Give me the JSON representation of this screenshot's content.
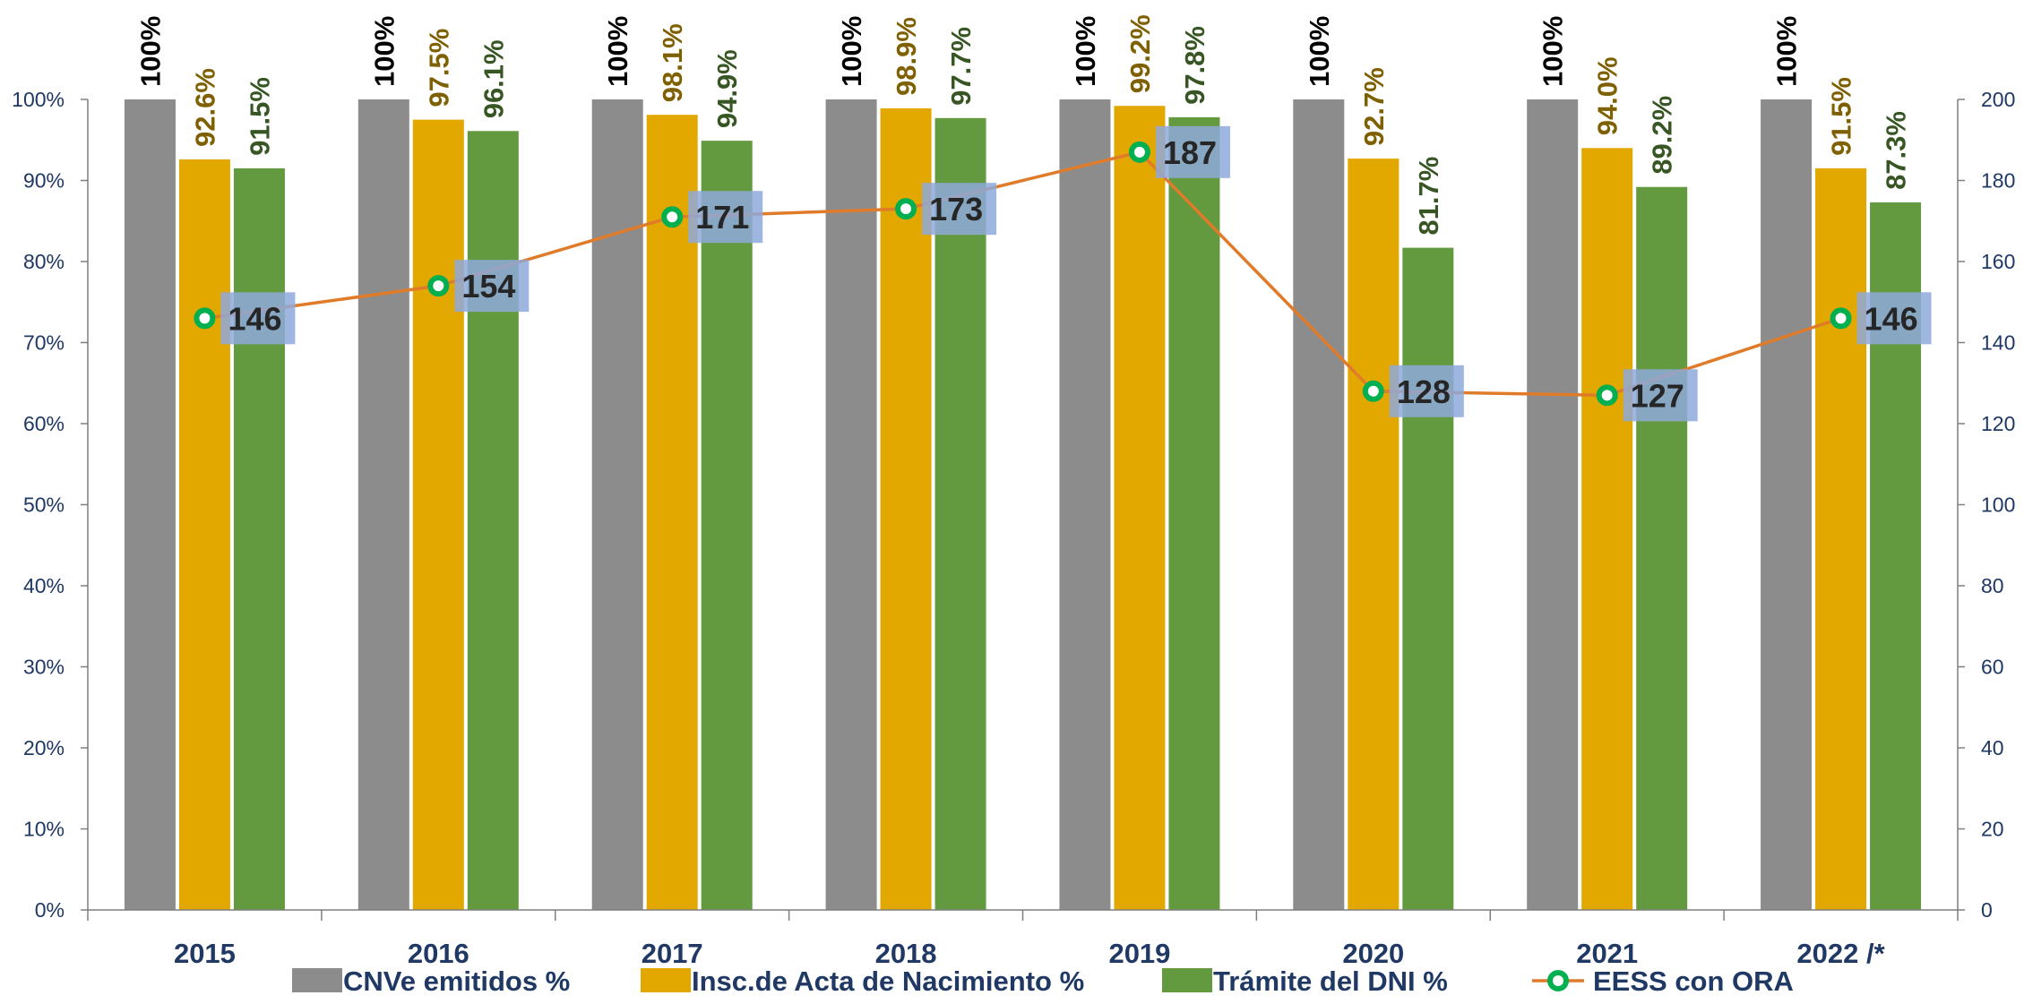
{
  "chart_data": {
    "type": "bar",
    "categories": [
      "2015",
      "2016",
      "2017",
      "2018",
      "2019",
      "2020",
      "2021",
      "2022 /*"
    ],
    "series": [
      {
        "name": "CNVe emitidos %",
        "kind": "bar",
        "axis": "left",
        "color": "#8c8c8c",
        "label_color": "#000000",
        "values": [
          100,
          100,
          100,
          100,
          100,
          100,
          100,
          100
        ],
        "labels": [
          "100%",
          "100%",
          "100%",
          "100%",
          "100%",
          "100%",
          "100%",
          "100%"
        ]
      },
      {
        "name": "Insc.de Acta de Nacimiento %",
        "kind": "bar",
        "axis": "left",
        "color": "#e3a800",
        "label_color": "#7f6000",
        "values": [
          92.6,
          97.5,
          98.1,
          98.9,
          99.2,
          92.7,
          94.0,
          91.5
        ],
        "labels": [
          "92.6%",
          "97.5%",
          "98.1%",
          "98.9%",
          "99.2%",
          "92.7%",
          "94.0%",
          "91.5%"
        ]
      },
      {
        "name": "Trámite del DNI %",
        "kind": "bar",
        "axis": "left",
        "color": "#649a3f",
        "label_color": "#375623",
        "values": [
          91.5,
          96.1,
          94.9,
          97.7,
          97.8,
          81.7,
          89.2,
          87.3
        ],
        "labels": [
          "91.5%",
          "96.1%",
          "94.9%",
          "97.7%",
          "97.8%",
          "81.7%",
          "89.2%",
          "87.3%"
        ]
      },
      {
        "name": "EESS con ORA",
        "kind": "line",
        "axis": "right",
        "color": "#e07b2a",
        "marker_color": "#00b050",
        "label_bg": "#8ea9db",
        "values": [
          146,
          154,
          171,
          173,
          187,
          128,
          127,
          146
        ],
        "labels": [
          "146",
          "154",
          "171",
          "173",
          "187",
          "128",
          "127",
          "146"
        ]
      }
    ],
    "y_left": {
      "ylim": [
        0,
        100
      ],
      "ticks": [
        0,
        10,
        20,
        30,
        40,
        50,
        60,
        70,
        80,
        90,
        100
      ],
      "tick_labels": [
        "0%",
        "10%",
        "20%",
        "30%",
        "40%",
        "50%",
        "60%",
        "70%",
        "80%",
        "90%",
        "100%"
      ]
    },
    "y_right": {
      "ylim": [
        0,
        200
      ],
      "ticks": [
        0,
        20,
        40,
        60,
        80,
        100,
        120,
        140,
        160,
        180,
        200
      ],
      "tick_labels": [
        "0",
        "20",
        "40",
        "60",
        "80",
        "100",
        "120",
        "140",
        "160",
        "180",
        "200"
      ]
    },
    "grid": false,
    "legend_position": "bottom",
    "axis_color": "#7f7f7f"
  }
}
